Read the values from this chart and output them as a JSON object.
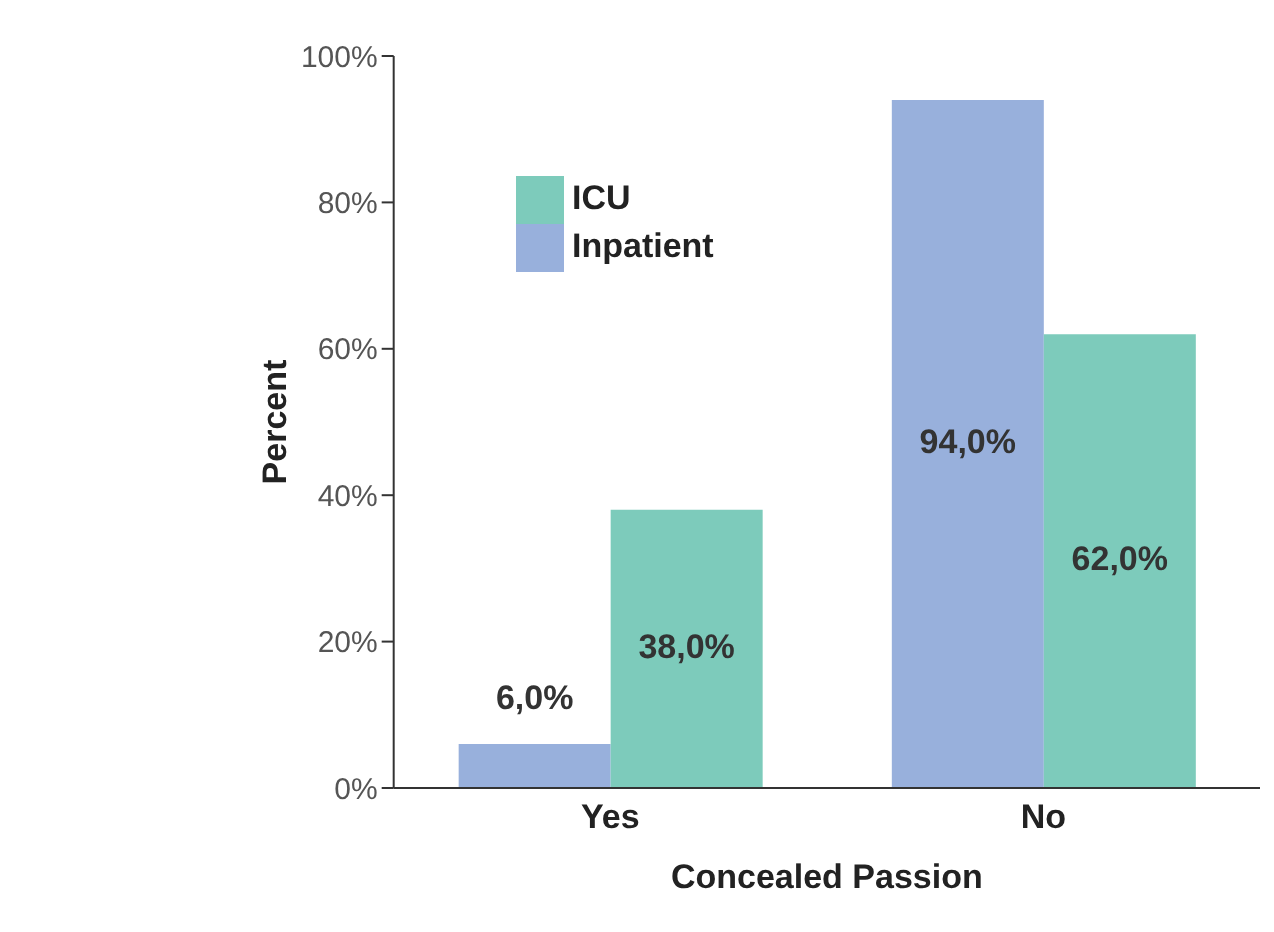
{
  "chart_data": {
    "type": "bar",
    "xlabel": "Concealed Passion",
    "ylabel": "Percent",
    "categories": [
      "Yes",
      "No"
    ],
    "series": [
      {
        "name": "Inpatient",
        "color": "#98b0dc",
        "values": [
          6,
          94
        ],
        "value_labels": [
          "6,0%",
          "94,0%"
        ]
      },
      {
        "name": "ICU",
        "color": "#7dcbbb",
        "values": [
          38,
          62
        ],
        "value_labels": [
          "38,0%",
          "62,0%"
        ]
      }
    ],
    "ylim": [
      0,
      100
    ],
    "yticks": [
      {
        "value": 0,
        "label": "0%"
      },
      {
        "value": 20,
        "label": "20%"
      },
      {
        "value": 40,
        "label": "40%"
      },
      {
        "value": 60,
        "label": "60%"
      },
      {
        "value": 80,
        "label": "80%"
      },
      {
        "value": 100,
        "label": "100%"
      }
    ],
    "legend": "top left",
    "grid": false
  }
}
